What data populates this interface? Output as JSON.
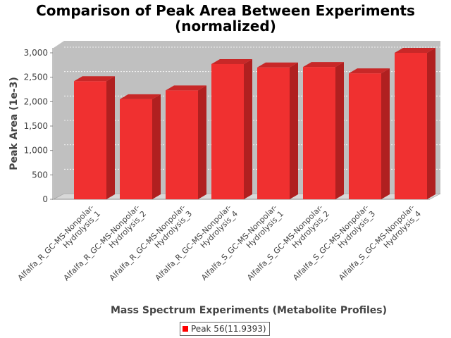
{
  "chart_data": {
    "type": "bar",
    "title_line1": "Comparison of Peak Area Between Experiments",
    "title_line2": "(normalized)",
    "xlabel": "Mass Spectrum Experiments (Metabolite Profiles)",
    "ylabel": "Peak Area (1e-3)",
    "ylim": [
      0,
      3000
    ],
    "yticks": [
      "0",
      "500",
      "1,000",
      "1,500",
      "2,000",
      "2,500",
      "3,000"
    ],
    "grid": true,
    "legend_position": "bottom",
    "categories": [
      [
        "Alfalfa_R_GC-MS-Nonpolar-",
        "Hydrolysis_1"
      ],
      [
        "Alfalfa_R_GC-MS-Nonpolar-",
        "Hydrolysis_2"
      ],
      [
        "Alfalfa_R_GC-MS-Nonpolar-",
        "Hydrolysis_3"
      ],
      [
        "Alfalfa_R_GC-MS-Nonpolar-",
        "Hydrolysis_4"
      ],
      [
        "Alfalfa_S_GC-MS-Nonpolar-",
        "Hydrolysis_1"
      ],
      [
        "Alfalfa_S_GC-MS-Nonpolar-",
        "Hydrolysis_2"
      ],
      [
        "Alfalfa_S_GC-MS-Nonpolar-",
        "Hydrolysis_3"
      ],
      [
        "Alfalfa_S_GC-MS-Nonpolar-",
        "Hydrolysis_4"
      ]
    ],
    "series": [
      {
        "name": "Peak 56(11.9393)",
        "color": "#ff0000",
        "values": [
          2420,
          2050,
          2230,
          2770,
          2700,
          2710,
          2580,
          3000
        ]
      }
    ]
  }
}
